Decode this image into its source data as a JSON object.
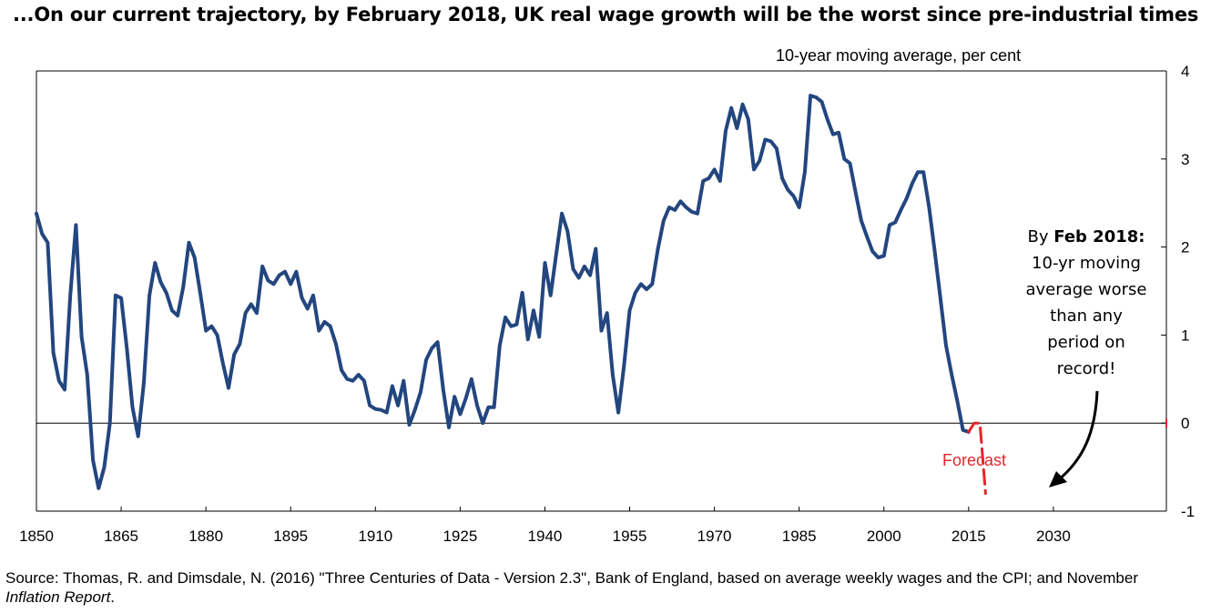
{
  "chart_data": {
    "type": "line",
    "title": "...On our current trajectory, by February 2018, UK real wage growth will be the worst since pre-industrial times",
    "unit_label": "10-year moving average, per cent",
    "x_ticks": [
      "1850",
      "1865",
      "1880",
      "1895",
      "1910",
      "1925",
      "1940",
      "1955",
      "1970",
      "1985",
      "2000",
      "2015",
      "2030"
    ],
    "y_ticks": [
      "4",
      "3",
      "2",
      "1",
      "0",
      "-1"
    ],
    "xlim": [
      1850,
      2050
    ],
    "ylim": [
      -1,
      4
    ],
    "grid": false,
    "series": [
      {
        "role": "historical",
        "color": "#23467f",
        "x": [
          1850,
          1851,
          1852,
          1853,
          1854,
          1855,
          1856,
          1857,
          1858,
          1859,
          1860,
          1861,
          1862,
          1863,
          1864,
          1865,
          1866,
          1867,
          1868,
          1869,
          1870,
          1871,
          1872,
          1873,
          1874,
          1875,
          1876,
          1877,
          1878,
          1879,
          1880,
          1881,
          1882,
          1883,
          1884,
          1885,
          1886,
          1887,
          1888,
          1889,
          1890,
          1891,
          1892,
          1893,
          1894,
          1895,
          1896,
          1897,
          1898,
          1899,
          1900,
          1901,
          1902,
          1903,
          1904,
          1905,
          1906,
          1907,
          1908,
          1909,
          1910,
          1911,
          1912,
          1913,
          1914,
          1915,
          1916,
          1917,
          1918,
          1919,
          1920,
          1921,
          1922,
          1923,
          1924,
          1925,
          1926,
          1927,
          1928,
          1929,
          1930,
          1931,
          1932,
          1933,
          1934,
          1935,
          1936,
          1937,
          1938,
          1939,
          1940,
          1941,
          1942,
          1943,
          1944,
          1945,
          1946,
          1947,
          1948,
          1949,
          1950,
          1951,
          1952,
          1953,
          1954,
          1955,
          1956,
          1957,
          1958,
          1959,
          1960,
          1961,
          1962,
          1963,
          1964,
          1965,
          1966,
          1967,
          1968,
          1969,
          1970,
          1971,
          1972,
          1973,
          1974,
          1975,
          1976,
          1977,
          1978,
          1979,
          1980,
          1981,
          1982,
          1983,
          1984,
          1985,
          1986,
          1987,
          1988,
          1989,
          1990,
          1991,
          1992,
          1993,
          1994,
          1995,
          1996,
          1997,
          1998,
          1999,
          2000,
          2001,
          2002,
          2003,
          2004,
          2005,
          2006,
          2007,
          2008,
          2009,
          2010,
          2011,
          2012,
          2013,
          2014,
          2015
        ],
        "values": [
          2.38,
          2.15,
          2.05,
          0.8,
          0.48,
          0.38,
          1.45,
          2.25,
          0.98,
          0.55,
          -0.42,
          -0.74,
          -0.5,
          0.0,
          1.45,
          1.42,
          0.85,
          0.18,
          -0.15,
          0.45,
          1.45,
          1.82,
          1.6,
          1.48,
          1.28,
          1.22,
          1.55,
          2.05,
          1.88,
          1.48,
          1.05,
          1.1,
          1.0,
          0.68,
          0.4,
          0.78,
          0.9,
          1.25,
          1.35,
          1.25,
          1.78,
          1.62,
          1.58,
          1.68,
          1.72,
          1.58,
          1.72,
          1.42,
          1.3,
          1.45,
          1.05,
          1.15,
          1.1,
          0.9,
          0.6,
          0.5,
          0.48,
          0.55,
          0.48,
          0.2,
          0.16,
          0.15,
          0.12,
          0.42,
          0.2,
          0.48,
          -0.02,
          0.15,
          0.35,
          0.72,
          0.85,
          0.92,
          0.38,
          -0.05,
          0.3,
          0.1,
          0.28,
          0.5,
          0.2,
          0.0,
          0.18,
          0.18,
          0.88,
          1.2,
          1.1,
          1.12,
          1.48,
          0.95,
          1.28,
          0.98,
          1.82,
          1.45,
          1.92,
          2.38,
          2.18,
          1.75,
          1.65,
          1.78,
          1.68,
          1.98,
          1.05,
          1.25,
          0.55,
          0.12,
          0.65,
          1.28,
          1.48,
          1.58,
          1.52,
          1.58,
          1.98,
          2.3,
          2.45,
          2.42,
          2.52,
          2.45,
          2.4,
          2.38,
          2.75,
          2.78,
          2.88,
          2.75,
          3.32,
          3.58,
          3.35,
          3.62,
          3.45,
          2.88,
          2.98,
          3.22,
          3.2,
          3.12,
          2.78,
          2.65,
          2.58,
          2.45,
          2.85,
          3.72,
          3.7,
          3.65,
          3.45,
          3.28,
          3.3,
          3.0,
          2.95,
          2.62,
          2.3,
          2.12,
          1.95,
          1.88,
          1.9,
          2.25,
          2.28,
          2.42,
          2.55,
          2.72,
          2.85,
          2.85,
          2.45,
          1.95,
          1.42,
          0.88,
          0.55,
          0.25,
          -0.08,
          -0.1
        ]
      },
      {
        "role": "forecast",
        "name": "Forecast",
        "color": "#e3262a",
        "x": [
          2015,
          2016,
          2017,
          2018
        ],
        "values": [
          -0.1,
          0.0,
          0.0,
          -0.8
        ]
      }
    ],
    "annotation": {
      "bold": "Feb 2018:",
      "prefix": "By ",
      "lines": [
        "10-yr moving",
        "average worse",
        "than any",
        "period on",
        "record!"
      ]
    }
  },
  "source": {
    "text": "Source: Thomas, R. and Dimsdale, N. (2016) \"Three Centuries of Data - Version 2.3\", Bank of England, based on average weekly wages and the CPI; and November ",
    "italic": "Inflation Report",
    "end": "."
  },
  "colors": {
    "line": "#23467f",
    "forecast": "#e3262a",
    "axis": "#000000"
  }
}
